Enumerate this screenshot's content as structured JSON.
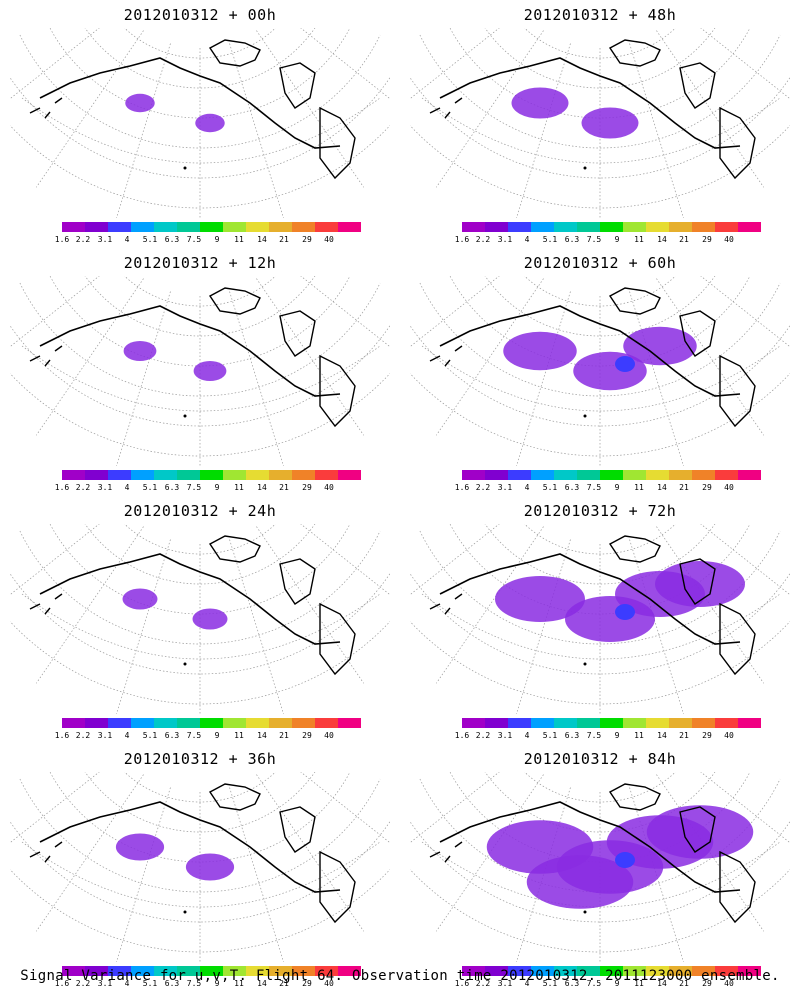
{
  "panels": [
    {
      "title": "2012010312 + 00h",
      "coverage": 0.05
    },
    {
      "title": "2012010312 + 48h",
      "coverage": 0.3
    },
    {
      "title": "2012010312 + 12h",
      "coverage": 0.08
    },
    {
      "title": "2012010312 + 60h",
      "coverage": 0.45
    },
    {
      "title": "2012010312 + 24h",
      "coverage": 0.1
    },
    {
      "title": "2012010312 + 72h",
      "coverage": 0.6
    },
    {
      "title": "2012010312 + 36h",
      "coverage": 0.22
    },
    {
      "title": "2012010312 + 84h",
      "coverage": 0.75
    }
  ],
  "colorbar": {
    "labels": [
      "1.6",
      "2.2",
      "3.1",
      "4",
      "5.1",
      "6.3",
      "7.5",
      "9",
      "11",
      "14",
      "21",
      "29",
      "40"
    ],
    "colors": [
      "#a000c8",
      "#8000d0",
      "#3c3cff",
      "#00a0ff",
      "#00c8c8",
      "#00c896",
      "#00dc00",
      "#a0e632",
      "#e6dc32",
      "#e6af2d",
      "#f08228",
      "#fa3c3c",
      "#f00082"
    ]
  },
  "footer": "Signal Variance for u,v,T. Flight 64. Observation time 2012010312. 2011123000 ensemble."
}
